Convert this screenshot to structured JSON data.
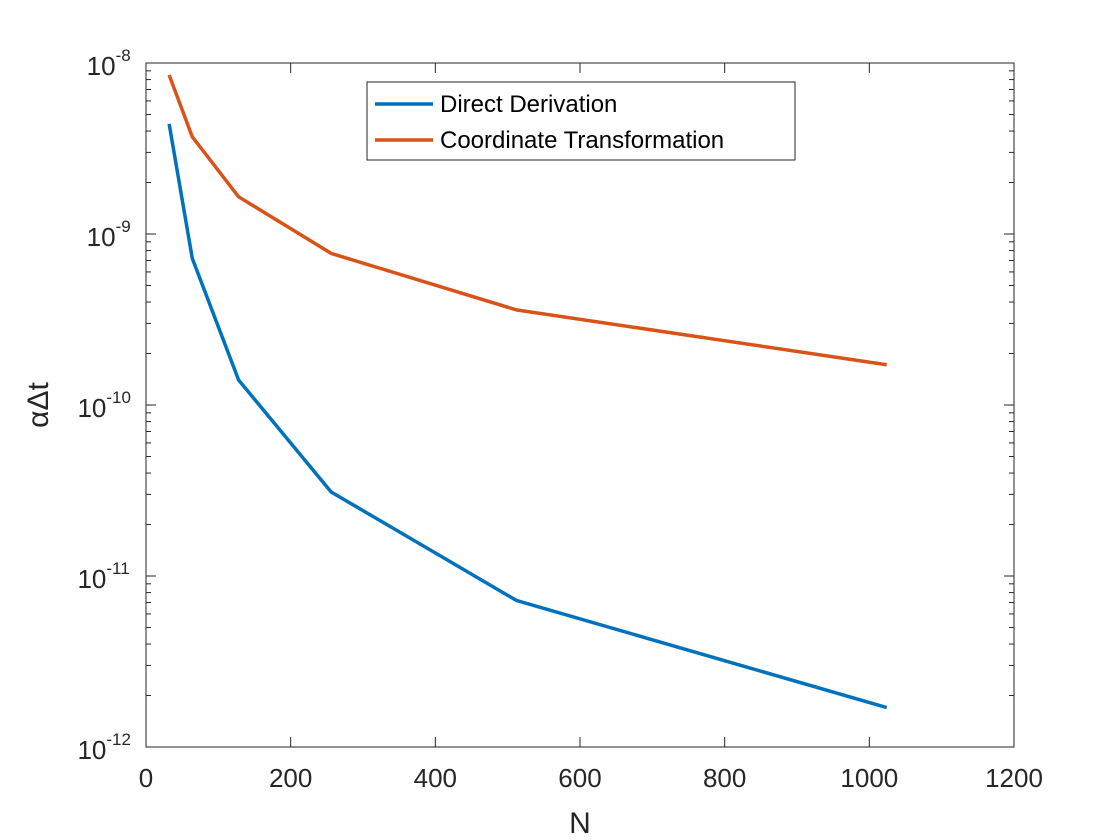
{
  "chart_data": {
    "type": "line",
    "title": "",
    "xlabel": "N",
    "ylabel": "αΔt",
    "xlim": [
      0,
      1200
    ],
    "ylim": [
      1e-12,
      1e-08
    ],
    "yscale": "log",
    "grid": false,
    "legend_position": "top-center",
    "xticks": [
      0,
      200,
      400,
      600,
      800,
      1000,
      1200
    ],
    "xtick_labels": [
      "0",
      "200",
      "400",
      "600",
      "800",
      "1000",
      "1200"
    ],
    "ytick_exponents": [
      -12,
      -11,
      -10,
      -9,
      -8
    ],
    "ytick_base": "10",
    "ytick_exponent_labels": [
      "-12",
      "-11",
      "-10",
      "-9",
      "-8"
    ],
    "series": [
      {
        "name": "Direct Derivation",
        "color": "#0072BD",
        "x": [
          32,
          64,
          128,
          256,
          512,
          1024
        ],
        "y": [
          4.4e-09,
          7.2e-10,
          1.4e-10,
          3.1e-11,
          7.2e-12,
          1.7e-12
        ]
      },
      {
        "name": "Coordinate Transformation",
        "color": "#D95319",
        "x": [
          32,
          64,
          128,
          256,
          512,
          1024
        ],
        "y": [
          8.5e-09,
          3.7e-09,
          1.65e-09,
          7.7e-10,
          3.6e-10,
          1.72e-10
        ]
      }
    ]
  }
}
